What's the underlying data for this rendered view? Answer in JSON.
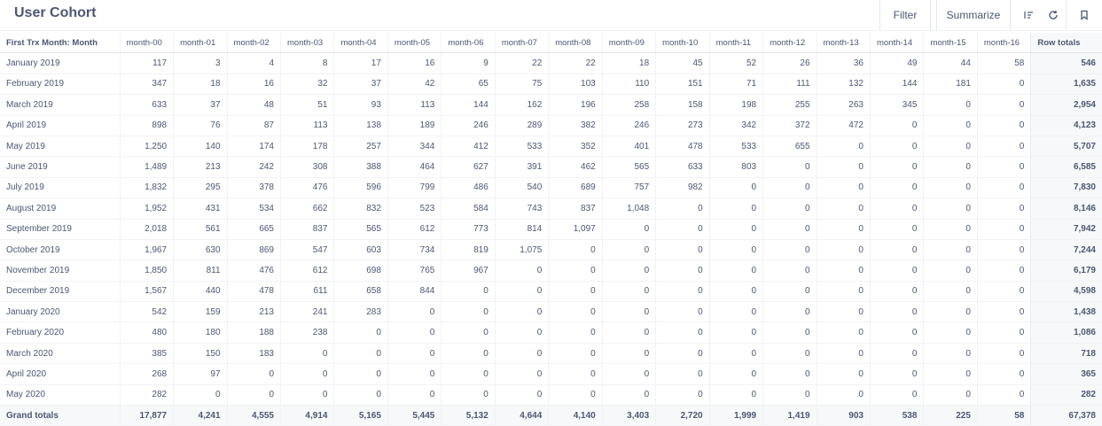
{
  "header": {
    "title": "User Cohort",
    "filter_label": "Filter",
    "summarize_label": "Summarize"
  },
  "icons": [
    "columns-icon",
    "refresh-icon",
    "bookmark-icon"
  ],
  "table": {
    "columns": [
      "First Trx Month: Month",
      "month-00",
      "month-01",
      "month-02",
      "month-03",
      "month-04",
      "month-05",
      "month-06",
      "month-07",
      "month-08",
      "month-09",
      "month-10",
      "month-11",
      "month-12",
      "month-13",
      "month-14",
      "month-15",
      "month-16",
      "Row totals"
    ],
    "rows": [
      [
        "January 2019",
        "117",
        "3",
        "4",
        "8",
        "17",
        "16",
        "9",
        "22",
        "22",
        "18",
        "45",
        "52",
        "26",
        "36",
        "49",
        "44",
        "58",
        "546"
      ],
      [
        "February 2019",
        "347",
        "18",
        "16",
        "32",
        "37",
        "42",
        "65",
        "75",
        "103",
        "110",
        "151",
        "71",
        "111",
        "132",
        "144",
        "181",
        "0",
        "1,635"
      ],
      [
        "March 2019",
        "633",
        "37",
        "48",
        "51",
        "93",
        "113",
        "144",
        "162",
        "196",
        "258",
        "158",
        "198",
        "255",
        "263",
        "345",
        "0",
        "0",
        "2,954"
      ],
      [
        "April 2019",
        "898",
        "76",
        "87",
        "113",
        "138",
        "189",
        "246",
        "289",
        "382",
        "246",
        "273",
        "342",
        "372",
        "472",
        "0",
        "0",
        "0",
        "4,123"
      ],
      [
        "May 2019",
        "1,250",
        "140",
        "174",
        "178",
        "257",
        "344",
        "412",
        "533",
        "352",
        "401",
        "478",
        "533",
        "655",
        "0",
        "0",
        "0",
        "0",
        "5,707"
      ],
      [
        "June 2019",
        "1,489",
        "213",
        "242",
        "308",
        "388",
        "464",
        "627",
        "391",
        "462",
        "565",
        "633",
        "803",
        "0",
        "0",
        "0",
        "0",
        "0",
        "6,585"
      ],
      [
        "July 2019",
        "1,832",
        "295",
        "378",
        "476",
        "596",
        "799",
        "486",
        "540",
        "689",
        "757",
        "982",
        "0",
        "0",
        "0",
        "0",
        "0",
        "0",
        "7,830"
      ],
      [
        "August 2019",
        "1,952",
        "431",
        "534",
        "662",
        "832",
        "523",
        "584",
        "743",
        "837",
        "1,048",
        "0",
        "0",
        "0",
        "0",
        "0",
        "0",
        "0",
        "8,146"
      ],
      [
        "September 2019",
        "2,018",
        "561",
        "665",
        "837",
        "565",
        "612",
        "773",
        "814",
        "1,097",
        "0",
        "0",
        "0",
        "0",
        "0",
        "0",
        "0",
        "0",
        "7,942"
      ],
      [
        "October 2019",
        "1,967",
        "630",
        "869",
        "547",
        "603",
        "734",
        "819",
        "1,075",
        "0",
        "0",
        "0",
        "0",
        "0",
        "0",
        "0",
        "0",
        "0",
        "7,244"
      ],
      [
        "November 2019",
        "1,850",
        "811",
        "476",
        "612",
        "698",
        "765",
        "967",
        "0",
        "0",
        "0",
        "0",
        "0",
        "0",
        "0",
        "0",
        "0",
        "0",
        "6,179"
      ],
      [
        "December 2019",
        "1,567",
        "440",
        "478",
        "611",
        "658",
        "844",
        "0",
        "0",
        "0",
        "0",
        "0",
        "0",
        "0",
        "0",
        "0",
        "0",
        "0",
        "4,598"
      ],
      [
        "January 2020",
        "542",
        "159",
        "213",
        "241",
        "283",
        "0",
        "0",
        "0",
        "0",
        "0",
        "0",
        "0",
        "0",
        "0",
        "0",
        "0",
        "0",
        "1,438"
      ],
      [
        "February 2020",
        "480",
        "180",
        "188",
        "238",
        "0",
        "0",
        "0",
        "0",
        "0",
        "0",
        "0",
        "0",
        "0",
        "0",
        "0",
        "0",
        "0",
        "1,086"
      ],
      [
        "March 2020",
        "385",
        "150",
        "183",
        "0",
        "0",
        "0",
        "0",
        "0",
        "0",
        "0",
        "0",
        "0",
        "0",
        "0",
        "0",
        "0",
        "0",
        "718"
      ],
      [
        "April 2020",
        "268",
        "97",
        "0",
        "0",
        "0",
        "0",
        "0",
        "0",
        "0",
        "0",
        "0",
        "0",
        "0",
        "0",
        "0",
        "0",
        "0",
        "365"
      ],
      [
        "May 2020",
        "282",
        "0",
        "0",
        "0",
        "0",
        "0",
        "0",
        "0",
        "0",
        "0",
        "0",
        "0",
        "0",
        "0",
        "0",
        "0",
        "0",
        "282"
      ]
    ],
    "grand_totals": [
      "Grand totals",
      "17,877",
      "4,241",
      "4,555",
      "4,914",
      "5,165",
      "5,445",
      "5,132",
      "4,644",
      "4,140",
      "3,403",
      "2,720",
      "1,999",
      "1,419",
      "903",
      "538",
      "225",
      "58",
      "67,378"
    ]
  }
}
